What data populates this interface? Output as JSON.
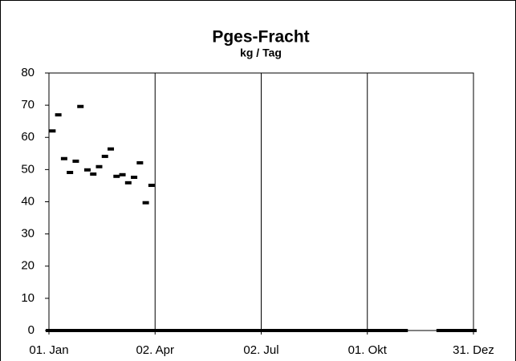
{
  "chart_data": {
    "type": "scatter",
    "title": "Pges-Fracht",
    "subtitle": "kg / Tag",
    "xlim": [
      1,
      365
    ],
    "xticks": [
      {
        "value": 1,
        "label": "01. Jan"
      },
      {
        "value": 92,
        "label": "02. Apr"
      },
      {
        "value": 183,
        "label": "02. Jul"
      },
      {
        "value": 274,
        "label": "01. Okt"
      },
      {
        "value": 365,
        "label": "31. Dez"
      }
    ],
    "ylim": [
      0,
      80
    ],
    "yticks": [
      0,
      10,
      20,
      30,
      40,
      50,
      60,
      70,
      80
    ],
    "grid": "x",
    "series": [
      {
        "color": "#000000",
        "x": [
          4,
          9,
          14,
          19,
          24,
          28,
          34,
          39,
          44,
          49,
          54,
          59,
          64,
          69,
          74,
          79,
          84,
          89
        ],
        "values": [
          62,
          67,
          53.4,
          49.1,
          52.6,
          69.6,
          49.9,
          48.6,
          50.9,
          54.1,
          56.4,
          47.9,
          48.4,
          45.9,
          47.6,
          52.1,
          39.7,
          45.1
        ]
      },
      {
        "color": "#000000",
        "x": [
          1,
          6,
          11,
          16,
          21,
          26,
          31,
          36,
          41,
          46,
          51,
          56,
          61,
          66,
          71,
          76,
          81,
          86,
          91,
          96,
          101,
          106,
          111,
          116,
          121,
          126,
          131,
          136,
          141,
          146,
          151,
          156,
          161,
          166,
          171,
          176,
          181,
          186,
          191,
          196,
          201,
          206,
          211,
          216,
          221,
          226,
          231,
          236,
          241,
          246,
          251,
          256,
          261,
          266,
          271,
          276,
          281,
          286,
          291,
          296,
          301,
          306,
          336,
          341,
          346,
          351,
          356,
          361,
          365
        ],
        "values": [
          0,
          0,
          0,
          0,
          0,
          0,
          0,
          0,
          0,
          0,
          0,
          0,
          0,
          0,
          0,
          0,
          0,
          0,
          0,
          0,
          0,
          0,
          0,
          0,
          0,
          0,
          0,
          0,
          0,
          0,
          0,
          0,
          0,
          0,
          0,
          0,
          0,
          0,
          0,
          0,
          0,
          0,
          0,
          0,
          0,
          0,
          0,
          0,
          0,
          0,
          0,
          0,
          0,
          0,
          0,
          0,
          0,
          0,
          0,
          0,
          0,
          0,
          0,
          0,
          0,
          0,
          0,
          0,
          0
        ]
      }
    ]
  }
}
